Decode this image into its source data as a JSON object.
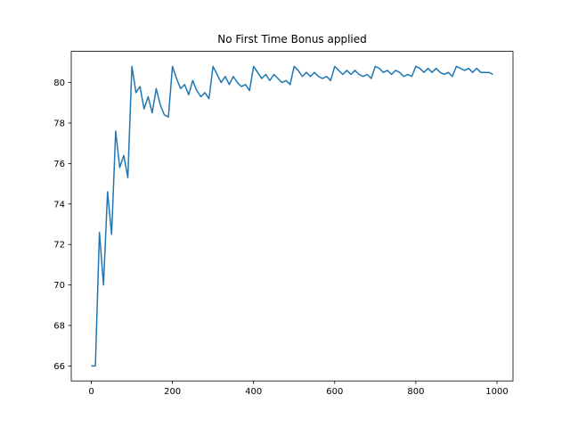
{
  "chart_data": {
    "type": "line",
    "title": "No First Time Bonus applied",
    "x": [
      0,
      10,
      20,
      30,
      40,
      50,
      60,
      70,
      80,
      90,
      100,
      110,
      120,
      130,
      140,
      150,
      160,
      170,
      180,
      190,
      200,
      210,
      220,
      230,
      240,
      250,
      260,
      270,
      280,
      290,
      300,
      310,
      320,
      330,
      340,
      350,
      360,
      370,
      380,
      390,
      400,
      410,
      420,
      430,
      440,
      450,
      460,
      470,
      480,
      490,
      500,
      510,
      520,
      530,
      540,
      550,
      560,
      570,
      580,
      590,
      600,
      610,
      620,
      630,
      640,
      650,
      660,
      670,
      680,
      690,
      700,
      710,
      720,
      730,
      740,
      750,
      760,
      770,
      780,
      790,
      800,
      810,
      820,
      830,
      840,
      850,
      860,
      870,
      880,
      890,
      900,
      910,
      920,
      930,
      940,
      950,
      960,
      970,
      980,
      990
    ],
    "series": [
      {
        "color": "#1f77b4",
        "values": [
          66.0,
          66.0,
          72.6,
          70.0,
          74.6,
          72.5,
          77.6,
          75.8,
          76.4,
          75.3,
          80.8,
          79.5,
          79.8,
          78.7,
          79.3,
          78.5,
          79.7,
          78.9,
          78.4,
          78.3,
          80.8,
          80.2,
          79.7,
          79.9,
          79.4,
          80.1,
          79.6,
          79.3,
          79.5,
          79.2,
          80.8,
          80.4,
          80.0,
          80.3,
          79.9,
          80.3,
          80.0,
          79.8,
          79.9,
          79.6,
          80.8,
          80.5,
          80.2,
          80.4,
          80.1,
          80.4,
          80.2,
          80.0,
          80.1,
          79.9,
          80.8,
          80.6,
          80.3,
          80.5,
          80.3,
          80.5,
          80.3,
          80.2,
          80.3,
          80.1,
          80.8,
          80.6,
          80.4,
          80.6,
          80.4,
          80.6,
          80.4,
          80.3,
          80.4,
          80.2,
          80.8,
          80.7,
          80.5,
          80.6,
          80.4,
          80.6,
          80.5,
          80.3,
          80.4,
          80.3,
          80.8,
          80.7,
          80.5,
          80.7,
          80.5,
          80.7,
          80.5,
          80.4,
          80.5,
          80.3,
          80.8,
          80.7,
          80.6,
          80.7,
          80.5,
          80.7,
          80.5,
          80.5,
          80.5,
          80.4
        ]
      }
    ],
    "xlim": [
      -49.5,
      1039.5
    ],
    "xticks": [
      0,
      200,
      400,
      600,
      800,
      1000
    ],
    "ylim": [
      65.26,
      81.54
    ],
    "yticks": [
      66,
      68,
      70,
      72,
      74,
      76,
      78,
      80
    ]
  }
}
